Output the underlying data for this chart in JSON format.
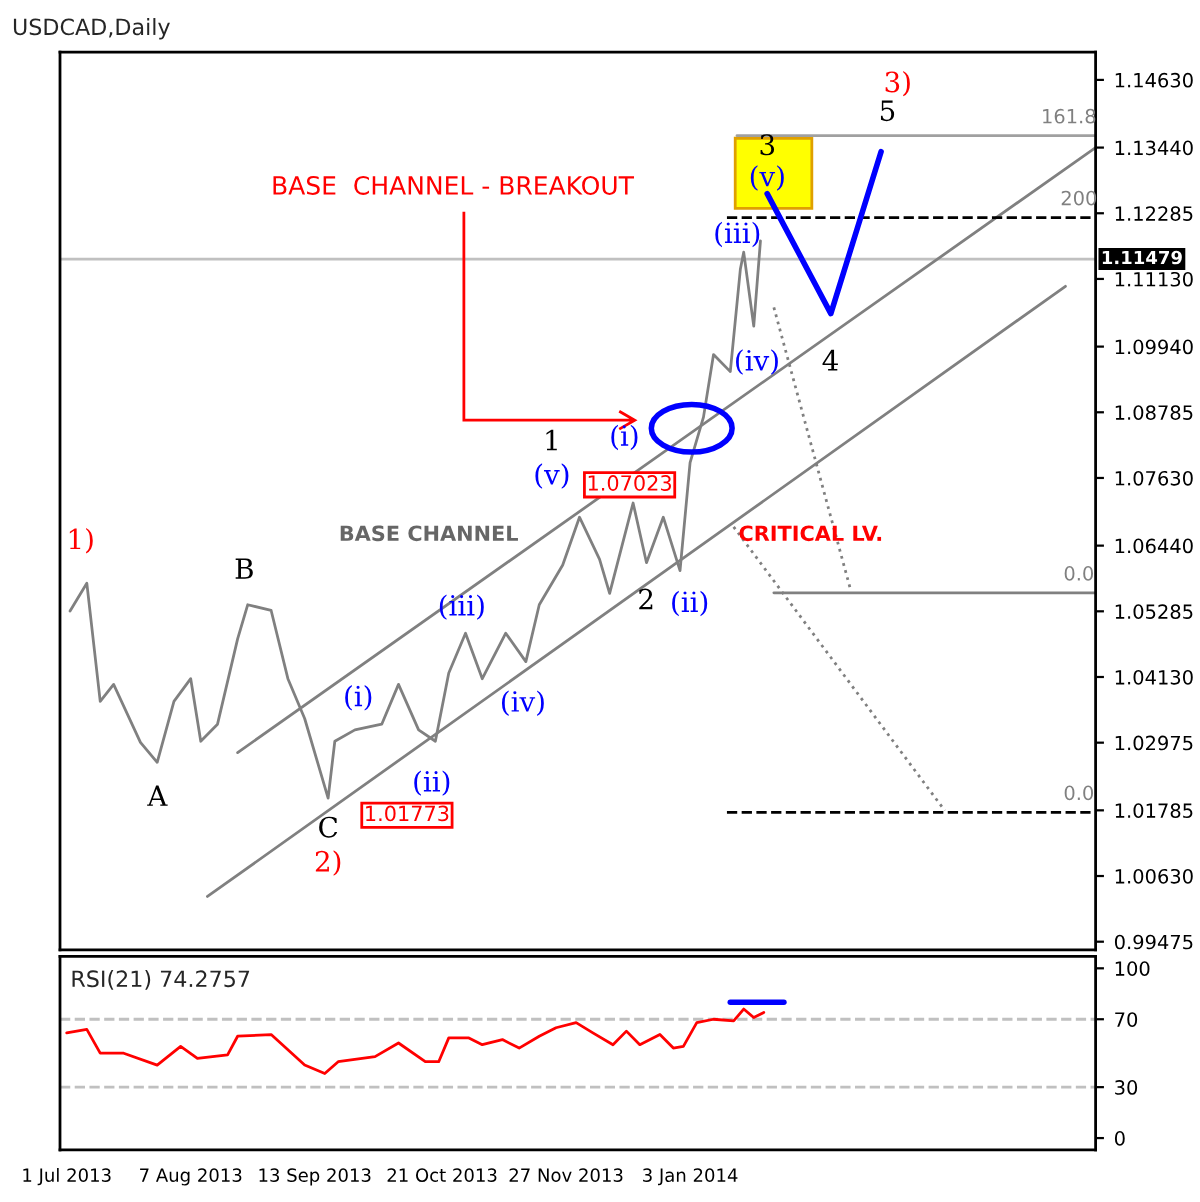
{
  "chart_data": [
    {
      "type": "line",
      "title": "USDCAD,Daily",
      "tick_labels": "y",
      "grid": false,
      "legend": false,
      "marker": "none",
      "xlim": [
        "2013-06-29",
        "2014-05-04"
      ],
      "ylim": [
        0.9933,
        1.1512
      ],
      "yticks": [
        {
          "value": 1.1463,
          "label": "1.14630"
        },
        {
          "value": 1.1344,
          "label": "1.13440"
        },
        {
          "value": 1.12285,
          "label": "1.12285"
        },
        {
          "value": 1.1113,
          "label": "1.11130"
        },
        {
          "value": 1.0994,
          "label": "1.09940"
        },
        {
          "value": 1.08785,
          "label": "1.08785"
        },
        {
          "value": 1.0763,
          "label": "1.07630"
        },
        {
          "value": 1.0644,
          "label": "1.06440"
        },
        {
          "value": 1.05285,
          "label": "1.05285"
        },
        {
          "value": 1.0413,
          "label": "1.04130"
        },
        {
          "value": 1.02975,
          "label": "1.02975"
        },
        {
          "value": 1.01785,
          "label": "1.01785"
        },
        {
          "value": 1.0063,
          "label": "1.00630"
        },
        {
          "value": 0.99475,
          "label": "0.99475"
        }
      ],
      "series": [
        {
          "color": "#808080",
          "line_style": "solid",
          "x": [
            "2013-07-02",
            "2013-07-07",
            "2013-07-11",
            "2013-07-15",
            "2013-07-23",
            "2013-07-28",
            "2013-08-02",
            "2013-08-07",
            "2013-08-10",
            "2013-08-15",
            "2013-08-21",
            "2013-08-24",
            "2013-08-31",
            "2013-09-05",
            "2013-09-10",
            "2013-09-17",
            "2013-09-19",
            "2013-09-25",
            "2013-10-03",
            "2013-10-08",
            "2013-10-14",
            "2013-10-19",
            "2013-10-23",
            "2013-10-28",
            "2013-11-02",
            "2013-11-09",
            "2013-11-15",
            "2013-11-19",
            "2013-11-26",
            "2013-12-01",
            "2013-12-07",
            "2013-12-10",
            "2013-12-17",
            "2013-12-21",
            "2013-12-26",
            "2013-12-31",
            "2014-01-03",
            "2014-01-07",
            "2014-01-10",
            "2014-01-15",
            "2014-01-18",
            "2014-01-19",
            "2014-01-22",
            "2014-01-24"
          ],
          "values": [
            1.0529,
            1.0578,
            1.037,
            1.04,
            1.0298,
            1.0263,
            1.037,
            1.041,
            1.03,
            1.033,
            1.048,
            1.054,
            1.053,
            1.041,
            1.034,
            1.02,
            1.03,
            1.032,
            1.033,
            1.04,
            1.032,
            1.03,
            1.042,
            1.049,
            1.041,
            1.049,
            1.044,
            1.054,
            1.061,
            1.0694,
            1.062,
            1.056,
            1.0719,
            1.0614,
            1.0694,
            1.06,
            1.079,
            1.087,
            1.098,
            1.095,
            1.113,
            1.116,
            1.103,
            1.118
          ]
        },
        {
          "color": "#808080",
          "line_style": "solid",
          "x": [
            "2013-08-21",
            "2014-05-04"
          ],
          "values": [
            1.028,
            1.1344
          ]
        },
        {
          "color": "#808080",
          "line_style": "solid",
          "x": [
            "2013-08-12",
            "2014-04-25"
          ],
          "values": [
            1.0027,
            1.11
          ]
        },
        {
          "color": "#a0a0a0",
          "line_style": "solid",
          "x": [
            "2014-01-17",
            "2014-05-04"
          ],
          "values": [
            1.1365,
            1.1365
          ]
        },
        {
          "color": "#000000",
          "line_style": "dashed",
          "x": [
            "2014-01-14",
            "2014-05-04"
          ],
          "values": [
            1.1221,
            1.1221
          ]
        },
        {
          "color": "#808080",
          "line_style": "solid",
          "x": [
            "2014-01-28",
            "2014-05-04"
          ],
          "values": [
            1.0561,
            1.0561
          ]
        },
        {
          "color": "#000000",
          "line_style": "dashed",
          "x": [
            "2014-01-14",
            "2014-05-04"
          ],
          "values": [
            1.0175,
            1.0175
          ]
        },
        {
          "color": "#0000ff",
          "line_style": "solid",
          "x": [
            "2014-01-26",
            "2014-02-14",
            "2014-03-01"
          ],
          "values": [
            1.1263,
            1.1052,
            1.1337
          ]
        },
        {
          "color": "#808080",
          "line_style": "dotted",
          "x": [
            "2014-01-28",
            "2014-02-20"
          ],
          "values": [
            1.1063,
            1.0564
          ]
        },
        {
          "color": "#808080",
          "line_style": "dotted",
          "x": [
            "2014-01-16",
            "2014-03-20"
          ],
          "values": [
            1.0677,
            1.0178
          ]
        }
      ],
      "ref_lines": [
        {
          "axis": "y",
          "value": 1.11479,
          "label": "1.11479",
          "color": "#c0c0c0"
        }
      ],
      "annotations": [
        "1)",
        "A",
        "B",
        "C",
        "2)",
        "(i)",
        "(ii)",
        "(iii)",
        "(iv)",
        "(v)",
        "1",
        "(i)",
        "2",
        "(ii)",
        "(iii)",
        "(iv)",
        "(v)",
        "3",
        "4",
        "5",
        "3)",
        "BASE  CHANNEL - BREAKOUT",
        "BASE CHANNEL",
        "CRITICAL LV.",
        "1.07023",
        "1.01773",
        {
          "text": "161.8",
          "x": "2014-04-26",
          "y": 1.1365
        },
        {
          "text": "200",
          "x": "2014-04-29",
          "y": 1.1221
        },
        {
          "text": "0.0",
          "x": "2014-04-29",
          "y": 1.0561
        },
        {
          "text": "0.0",
          "x": "2014-04-29",
          "y": 1.0175
        }
      ]
    },
    {
      "type": "line",
      "title": "RSI(21) 74.2757",
      "grid": false,
      "legend": false,
      "marker": "none",
      "xlim": [
        "2013-06-29",
        "2014-05-04"
      ],
      "ylim": [
        -7,
        107
      ],
      "yticks": [
        0,
        30,
        70,
        100
      ],
      "xticks": [
        {
          "value": "2013-07-01",
          "label": "1 Jul 2013"
        },
        {
          "value": "2013-08-07",
          "label": "7 Aug 2013"
        },
        {
          "value": "2013-09-13",
          "label": "13 Sep 2013"
        },
        {
          "value": "2013-10-21",
          "label": "21 Oct 2013"
        },
        {
          "value": "2013-11-27",
          "label": "27 Nov 2013"
        },
        {
          "value": "2014-01-03",
          "label": "3 Jan 2014"
        }
      ],
      "series": [
        {
          "color": "#ff0000",
          "line_style": "solid",
          "x": [
            "2013-07-01",
            "2013-07-07",
            "2013-07-11",
            "2013-07-18",
            "2013-07-28",
            "2013-08-04",
            "2013-08-09",
            "2013-08-18",
            "2013-08-21",
            "2013-08-31",
            "2013-09-10",
            "2013-09-16",
            "2013-09-20",
            "2013-10-01",
            "2013-10-08",
            "2013-10-16",
            "2013-10-20",
            "2013-10-23",
            "2013-10-29",
            "2013-11-02",
            "2013-11-08",
            "2013-11-13",
            "2013-11-19",
            "2013-11-24",
            "2013-11-30",
            "2013-12-05",
            "2013-12-11",
            "2013-12-15",
            "2013-12-19",
            "2013-12-25",
            "2013-12-29",
            "2014-01-01",
            "2014-01-05",
            "2014-01-10",
            "2014-01-16",
            "2014-01-19",
            "2014-01-22",
            "2014-01-25"
          ],
          "values": [
            62,
            64,
            50,
            50,
            43,
            54,
            47,
            49,
            60,
            61,
            43,
            38,
            45,
            48,
            56,
            45,
            45,
            59,
            59,
            55,
            58,
            53,
            60,
            65,
            68,
            62,
            55,
            63,
            55,
            61,
            53,
            54,
            68,
            70,
            69,
            76,
            71,
            74
          ]
        },
        {
          "color": "#0000ff",
          "line_style": "solid",
          "x": [
            "2014-01-15",
            "2014-01-31"
          ],
          "values": [
            80,
            80
          ]
        }
      ],
      "ref_lines": [
        {
          "axis": "y",
          "value": 70,
          "color": "#c0c0c0",
          "line_style": "dashed"
        },
        {
          "axis": "y",
          "value": 30,
          "color": "#c0c0c0",
          "line_style": "dashed"
        }
      ]
    }
  ]
}
